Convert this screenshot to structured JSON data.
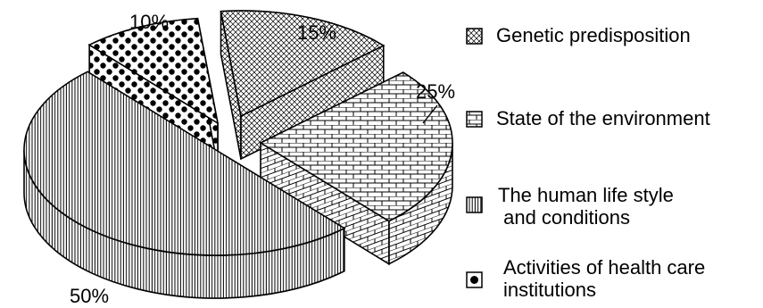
{
  "chart_data": {
    "type": "pie",
    "title": "",
    "slices": [
      {
        "label": "Genetic predisposition",
        "value": 15,
        "value_label": "15%",
        "pattern": "crosshatch"
      },
      {
        "label": "State of the environment",
        "value": 25,
        "value_label": "25%",
        "pattern": "brick"
      },
      {
        "label": "The human life style\n and conditions",
        "value": 50,
        "value_label": "50%",
        "pattern": "vertical-lines"
      },
      {
        "label": "Activities of health care\ninstitutions",
        "value": 10,
        "value_label": "10%",
        "pattern": "dots"
      }
    ],
    "style": "exploded-3d",
    "legend_position": "right"
  },
  "colors": {
    "ink": "#000000",
    "background": "#ffffff"
  }
}
